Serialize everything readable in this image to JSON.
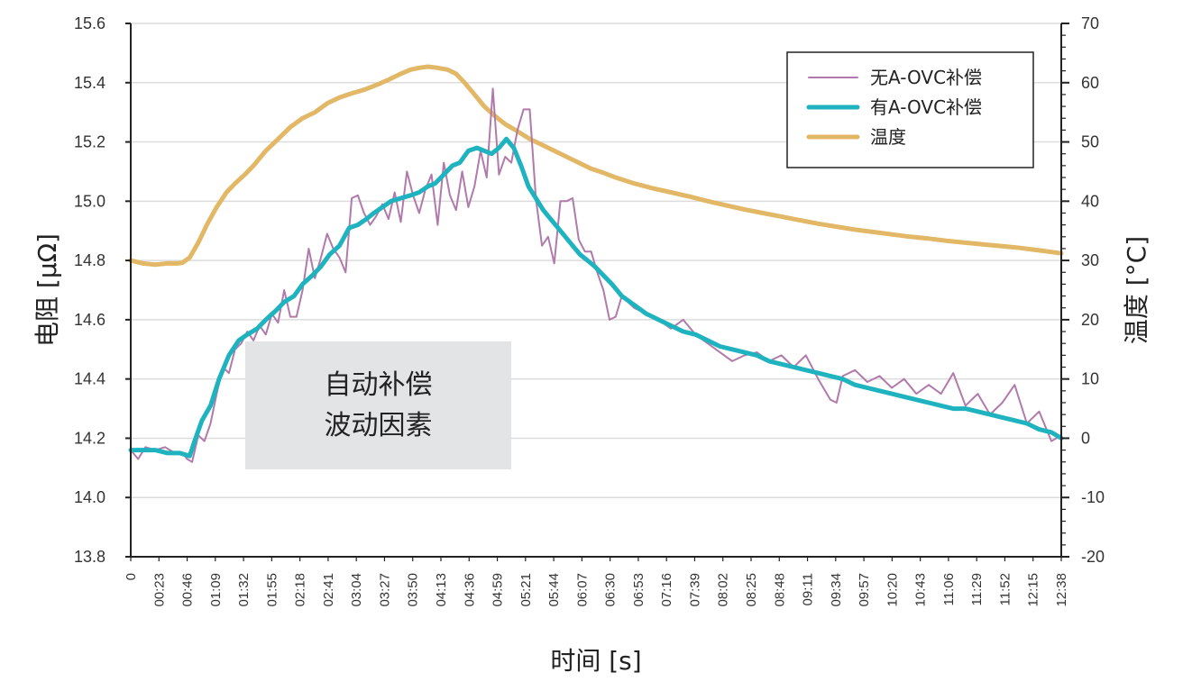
{
  "chart_data": {
    "type": "line",
    "xlabel": "时间 [s]",
    "ylabel_left": "电阻 [μΩ]",
    "ylabel_right": "温度 [°C]",
    "ylim_left": [
      13.8,
      15.6
    ],
    "ylim_right": [
      -20,
      70
    ],
    "yticks_left": [
      "13.8",
      "14.0",
      "14.2",
      "14.4",
      "14.6",
      "14.8",
      "15.0",
      "15.2",
      "15.4",
      "15.6"
    ],
    "yticks_right": [
      "-20",
      "-10",
      "0",
      "10",
      "20",
      "30",
      "40",
      "50",
      "60",
      "70"
    ],
    "xticks": [
      "0",
      "00:23",
      "00:46",
      "01:09",
      "01:32",
      "01:55",
      "02:18",
      "02:41",
      "03:04",
      "03:27",
      "03:50",
      "04:13",
      "04:36",
      "04:59",
      "05:21",
      "05:44",
      "06:07",
      "06:30",
      "06:53",
      "07:16",
      "07:39",
      "08:02",
      "08:25",
      "08:48",
      "09:11",
      "09:34",
      "09:57",
      "10:20",
      "10:43",
      "11:06",
      "11:29",
      "11:52",
      "12:15",
      "12:38"
    ],
    "xlim_seconds": [
      0,
      758
    ],
    "grid": "horizontal",
    "legend_position": "top-right",
    "series": [
      {
        "name": "无A-OVC补偿",
        "axis": "left",
        "color": "#b07aab",
        "points": [
          [
            0,
            14.16
          ],
          [
            6,
            14.13
          ],
          [
            12,
            14.17
          ],
          [
            20,
            14.16
          ],
          [
            28,
            14.17
          ],
          [
            36,
            14.15
          ],
          [
            42,
            14.15
          ],
          [
            46,
            14.13
          ],
          [
            50,
            14.12
          ],
          [
            55,
            14.21
          ],
          [
            60,
            14.19
          ],
          [
            65,
            14.25
          ],
          [
            70,
            14.35
          ],
          [
            75,
            14.44
          ],
          [
            80,
            14.42
          ],
          [
            85,
            14.5
          ],
          [
            90,
            14.52
          ],
          [
            95,
            14.56
          ],
          [
            100,
            14.53
          ],
          [
            105,
            14.58
          ],
          [
            110,
            14.55
          ],
          [
            115,
            14.62
          ],
          [
            120,
            14.59
          ],
          [
            125,
            14.7
          ],
          [
            130,
            14.61
          ],
          [
            135,
            14.61
          ],
          [
            140,
            14.7
          ],
          [
            145,
            14.84
          ],
          [
            150,
            14.74
          ],
          [
            155,
            14.81
          ],
          [
            160,
            14.89
          ],
          [
            165,
            14.84
          ],
          [
            170,
            14.81
          ],
          [
            175,
            14.76
          ],
          [
            180,
            15.01
          ],
          [
            185,
            15.02
          ],
          [
            190,
            14.96
          ],
          [
            195,
            14.92
          ],
          [
            200,
            14.95
          ],
          [
            205,
            14.99
          ],
          [
            210,
            14.94
          ],
          [
            215,
            15.03
          ],
          [
            220,
            14.93
          ],
          [
            225,
            15.1
          ],
          [
            230,
            15.02
          ],
          [
            235,
            14.96
          ],
          [
            240,
            15.04
          ],
          [
            245,
            15.09
          ],
          [
            250,
            14.92
          ],
          [
            255,
            15.13
          ],
          [
            260,
            15.02
          ],
          [
            265,
            14.97
          ],
          [
            270,
            15.1
          ],
          [
            275,
            14.98
          ],
          [
            280,
            15.05
          ],
          [
            285,
            15.17
          ],
          [
            290,
            15.08
          ],
          [
            295,
            15.38
          ],
          [
            300,
            15.09
          ],
          [
            305,
            15.15
          ],
          [
            310,
            15.13
          ],
          [
            315,
            15.24
          ],
          [
            320,
            15.31
          ],
          [
            325,
            15.31
          ],
          [
            330,
            15.01
          ],
          [
            335,
            14.85
          ],
          [
            340,
            14.88
          ],
          [
            345,
            14.79
          ],
          [
            350,
            15.0
          ],
          [
            355,
            15.0
          ],
          [
            360,
            15.01
          ],
          [
            365,
            14.87
          ],
          [
            370,
            14.83
          ],
          [
            375,
            14.83
          ],
          [
            380,
            14.76
          ],
          [
            385,
            14.7
          ],
          [
            390,
            14.6
          ],
          [
            395,
            14.61
          ],
          [
            400,
            14.68
          ],
          [
            405,
            14.66
          ],
          [
            410,
            14.64
          ],
          [
            420,
            14.62
          ],
          [
            430,
            14.6
          ],
          [
            440,
            14.57
          ],
          [
            450,
            14.6
          ],
          [
            460,
            14.55
          ],
          [
            470,
            14.52
          ],
          [
            480,
            14.49
          ],
          [
            490,
            14.46
          ],
          [
            500,
            14.48
          ],
          [
            510,
            14.49
          ],
          [
            520,
            14.46
          ],
          [
            530,
            14.48
          ],
          [
            540,
            14.44
          ],
          [
            550,
            14.48
          ],
          [
            560,
            14.4
          ],
          [
            570,
            14.33
          ],
          [
            575,
            14.32
          ],
          [
            580,
            14.41
          ],
          [
            590,
            14.43
          ],
          [
            600,
            14.39
          ],
          [
            610,
            14.41
          ],
          [
            620,
            14.37
          ],
          [
            630,
            14.4
          ],
          [
            640,
            14.35
          ],
          [
            650,
            14.38
          ],
          [
            660,
            14.35
          ],
          [
            670,
            14.42
          ],
          [
            680,
            14.31
          ],
          [
            690,
            14.35
          ],
          [
            700,
            14.28
          ],
          [
            710,
            14.32
          ],
          [
            720,
            14.38
          ],
          [
            730,
            14.25
          ],
          [
            740,
            14.29
          ],
          [
            750,
            14.19
          ],
          [
            758,
            14.21
          ]
        ]
      },
      {
        "name": "有A-OVC补偿",
        "axis": "left",
        "color": "#1fb3bf",
        "points": [
          [
            0,
            14.16
          ],
          [
            10,
            14.16
          ],
          [
            20,
            14.16
          ],
          [
            30,
            14.15
          ],
          [
            40,
            14.15
          ],
          [
            48,
            14.14
          ],
          [
            52,
            14.19
          ],
          [
            58,
            14.26
          ],
          [
            65,
            14.31
          ],
          [
            72,
            14.4
          ],
          [
            80,
            14.48
          ],
          [
            88,
            14.53
          ],
          [
            95,
            14.55
          ],
          [
            103,
            14.57
          ],
          [
            110,
            14.6
          ],
          [
            118,
            14.63
          ],
          [
            125,
            14.66
          ],
          [
            133,
            14.68
          ],
          [
            140,
            14.72
          ],
          [
            148,
            14.75
          ],
          [
            155,
            14.78
          ],
          [
            162,
            14.82
          ],
          [
            170,
            14.85
          ],
          [
            178,
            14.91
          ],
          [
            185,
            14.92
          ],
          [
            192,
            14.94
          ],
          [
            198,
            14.96
          ],
          [
            205,
            14.98
          ],
          [
            212,
            15.0
          ],
          [
            220,
            15.01
          ],
          [
            228,
            15.02
          ],
          [
            235,
            15.03
          ],
          [
            242,
            15.05
          ],
          [
            248,
            15.06
          ],
          [
            255,
            15.09
          ],
          [
            262,
            15.12
          ],
          [
            268,
            15.13
          ],
          [
            275,
            15.17
          ],
          [
            282,
            15.18
          ],
          [
            288,
            15.17
          ],
          [
            294,
            15.16
          ],
          [
            300,
            15.18
          ],
          [
            306,
            15.21
          ],
          [
            312,
            15.18
          ],
          [
            318,
            15.12
          ],
          [
            324,
            15.05
          ],
          [
            330,
            15.01
          ],
          [
            336,
            14.97
          ],
          [
            342,
            14.94
          ],
          [
            348,
            14.91
          ],
          [
            354,
            14.88
          ],
          [
            360,
            14.85
          ],
          [
            366,
            14.82
          ],
          [
            372,
            14.8
          ],
          [
            378,
            14.78
          ],
          [
            385,
            14.75
          ],
          [
            392,
            14.72
          ],
          [
            400,
            14.68
          ],
          [
            410,
            14.65
          ],
          [
            420,
            14.62
          ],
          [
            430,
            14.6
          ],
          [
            440,
            14.58
          ],
          [
            450,
            14.56
          ],
          [
            460,
            14.55
          ],
          [
            470,
            14.53
          ],
          [
            480,
            14.51
          ],
          [
            490,
            14.5
          ],
          [
            500,
            14.49
          ],
          [
            510,
            14.48
          ],
          [
            520,
            14.46
          ],
          [
            530,
            14.45
          ],
          [
            540,
            14.44
          ],
          [
            550,
            14.43
          ],
          [
            560,
            14.42
          ],
          [
            570,
            14.41
          ],
          [
            580,
            14.4
          ],
          [
            590,
            14.38
          ],
          [
            600,
            14.37
          ],
          [
            610,
            14.36
          ],
          [
            620,
            14.35
          ],
          [
            630,
            14.34
          ],
          [
            640,
            14.33
          ],
          [
            650,
            14.32
          ],
          [
            660,
            14.31
          ],
          [
            670,
            14.3
          ],
          [
            680,
            14.3
          ],
          [
            690,
            14.29
          ],
          [
            700,
            14.28
          ],
          [
            710,
            14.27
          ],
          [
            720,
            14.26
          ],
          [
            730,
            14.25
          ],
          [
            740,
            14.23
          ],
          [
            750,
            14.22
          ],
          [
            758,
            14.2
          ]
        ]
      },
      {
        "name": "温度",
        "axis": "right",
        "color": "#e2b766",
        "points": [
          [
            0,
            30
          ],
          [
            10,
            29.5
          ],
          [
            20,
            29.3
          ],
          [
            30,
            29.5
          ],
          [
            38,
            29.5
          ],
          [
            42,
            29.6
          ],
          [
            48,
            30.5
          ],
          [
            55,
            33
          ],
          [
            62,
            36
          ],
          [
            70,
            39
          ],
          [
            78,
            41.5
          ],
          [
            85,
            43
          ],
          [
            93,
            44.5
          ],
          [
            100,
            46
          ],
          [
            110,
            48.5
          ],
          [
            120,
            50.5
          ],
          [
            130,
            52.5
          ],
          [
            140,
            54
          ],
          [
            150,
            55
          ],
          [
            160,
            56.5
          ],
          [
            170,
            57.5
          ],
          [
            180,
            58.2
          ],
          [
            190,
            58.8
          ],
          [
            200,
            59.6
          ],
          [
            210,
            60.5
          ],
          [
            220,
            61.5
          ],
          [
            228,
            62.2
          ],
          [
            235,
            62.5
          ],
          [
            242,
            62.7
          ],
          [
            250,
            62.5
          ],
          [
            258,
            62.2
          ],
          [
            265,
            61.5
          ],
          [
            272,
            60
          ],
          [
            280,
            58
          ],
          [
            288,
            56
          ],
          [
            296,
            54.5
          ],
          [
            305,
            53
          ],
          [
            315,
            51.8
          ],
          [
            325,
            50.5
          ],
          [
            335,
            49.5
          ],
          [
            345,
            48.5
          ],
          [
            355,
            47.5
          ],
          [
            365,
            46.5
          ],
          [
            375,
            45.5
          ],
          [
            385,
            44.8
          ],
          [
            395,
            44
          ],
          [
            410,
            43
          ],
          [
            425,
            42.2
          ],
          [
            440,
            41.5
          ],
          [
            455,
            40.8
          ],
          [
            470,
            40
          ],
          [
            485,
            39.3
          ],
          [
            500,
            38.6
          ],
          [
            515,
            38
          ],
          [
            530,
            37.4
          ],
          [
            545,
            36.8
          ],
          [
            560,
            36.2
          ],
          [
            575,
            35.7
          ],
          [
            590,
            35.2
          ],
          [
            605,
            34.8
          ],
          [
            620,
            34.4
          ],
          [
            635,
            34
          ],
          [
            650,
            33.7
          ],
          [
            665,
            33.3
          ],
          [
            680,
            33
          ],
          [
            695,
            32.7
          ],
          [
            710,
            32.4
          ],
          [
            725,
            32.1
          ],
          [
            740,
            31.7
          ],
          [
            758,
            31.2
          ]
        ]
      }
    ],
    "annotation": {
      "line1": "自动补偿",
      "line2": "波动因素"
    }
  }
}
